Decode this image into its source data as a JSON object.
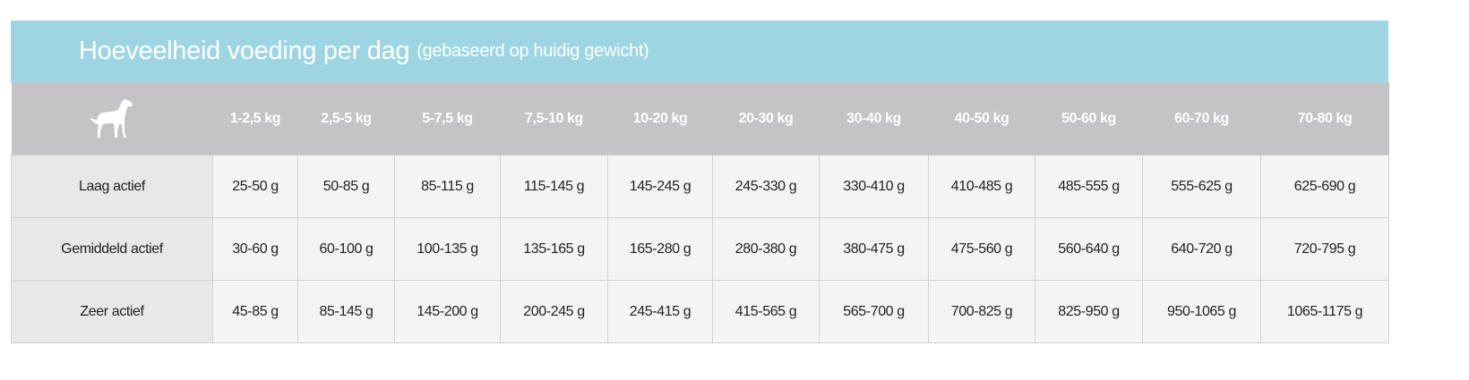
{
  "title": {
    "main": "Hoeveelheid voeding per dag",
    "sub": "(gebaseerd op huidig gewicht)"
  },
  "header": {
    "icon": "dog-icon",
    "columns": [
      "1-2,5 kg",
      "2,5-5 kg",
      "5-7,5 kg",
      "7,5-10 kg",
      "10-20 kg",
      "20-30 kg",
      "30-40 kg",
      "40-50 kg",
      "50-60 kg",
      "60-70 kg",
      "70-80 kg"
    ]
  },
  "rows": [
    {
      "label": "Laag actief",
      "values": [
        "25-50 g",
        "50-85 g",
        "85-115 g",
        "115-145 g",
        "145-245 g",
        "245-330 g",
        "330-410 g",
        "410-485 g",
        "485-555 g",
        "555-625 g",
        "625-690 g"
      ]
    },
    {
      "label": "Gemiddeld actief",
      "values": [
        "30-60 g",
        "60-100 g",
        "100-135 g",
        "135-165 g",
        "165-280 g",
        "280-380 g",
        "380-475 g",
        "475-560 g",
        "560-640 g",
        "640-720 g",
        "720-795 g"
      ]
    },
    {
      "label": "Zeer actief",
      "values": [
        "45-85 g",
        "85-145 g",
        "145-200 g",
        "200-245 g",
        "245-415 g",
        "415-565 g",
        "565-700 g",
        "700-825 g",
        "825-950 g",
        "950-1065 g",
        "1065-1175 g"
      ]
    }
  ],
  "colors": {
    "title_band": "#9dd5e2",
    "header_band": "#c4c4c6",
    "label_cell": "#e8e8e8",
    "value_cell": "#f4f4f4"
  }
}
